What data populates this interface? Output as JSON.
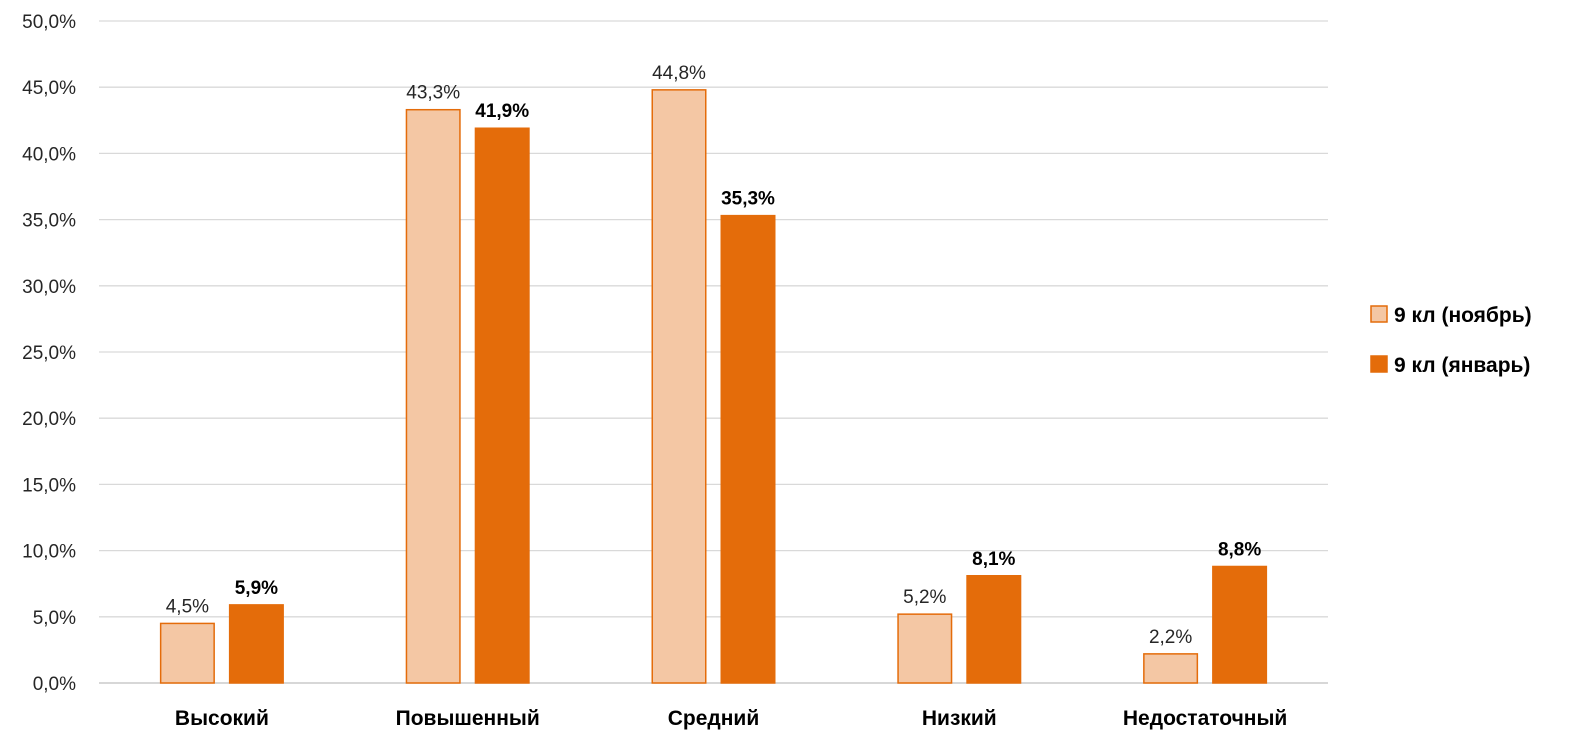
{
  "chart_data": {
    "type": "bar",
    "title": "",
    "xlabel": "",
    "ylabel": "",
    "ylim": [
      0,
      50
    ],
    "y_ticks": [
      "0,0%",
      "5,0%",
      "10,0%",
      "15,0%",
      "20,0%",
      "25,0%",
      "30,0%",
      "35,0%",
      "40,0%",
      "45,0%",
      "50,0%"
    ],
    "grid": true,
    "legend_position": "right",
    "categories": [
      "Высокий",
      "Повышенный",
      "Средний",
      "Низкий",
      "Недостаточный"
    ],
    "series": [
      {
        "name": "9 кл (ноябрь)",
        "values": [
          4.5,
          43.3,
          44.8,
          5.2,
          2.2
        ],
        "labels": [
          "4,5%",
          "43,3%",
          "44,8%",
          "5,2%",
          "2,2%"
        ],
        "fill": "#F4C7A4",
        "stroke": "#E46C0A",
        "label_bold": false
      },
      {
        "name": "9 кл (январь)",
        "values": [
          5.9,
          41.9,
          35.3,
          8.1,
          8.8
        ],
        "labels": [
          "5,9%",
          "41,9%",
          "35,3%",
          "8,1%",
          "8,8%"
        ],
        "fill": "#E46C0A",
        "stroke": "#E46C0A",
        "label_bold": true
      }
    ],
    "colors": {
      "grid": "#D9D9D9",
      "axis": "#BFBFBF"
    }
  }
}
